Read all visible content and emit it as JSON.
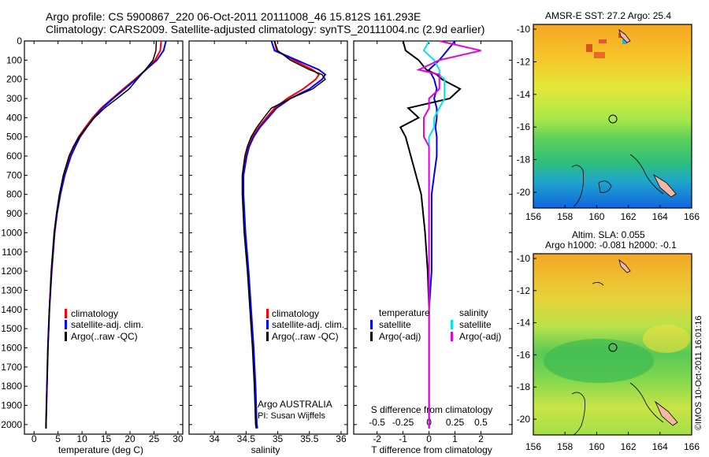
{
  "titles": {
    "line1": "Argo profile: CS 5900867_220 06-Oct-2011 20111008_46 15.812S 161.293E",
    "line2": "Climatology: CARS2009. Satellite-adjusted climatology: synTS_20111004.nc (2.9d earlier)"
  },
  "legend_temperature": [
    "climatology",
    "satellite-adj. clim.",
    "Argo(..raw -QC)"
  ],
  "legend_salinity": [
    "climatology",
    "satellite-adj. clim.",
    "Argo(..raw -QC)"
  ],
  "argo_credit": [
    "Argo AUSTRALIA",
    "PI: Susan Wijffels"
  ],
  "legend_diff": {
    "temp_header": "temperature",
    "sal_header": "salinity",
    "temp_items": [
      "satellite",
      "Argo(-adj)"
    ],
    "sal_items": [
      "satellite",
      "Argo(-adj)"
    ]
  },
  "map_sst": {
    "title": "AMSR-E SST: 27.2 Argo: 25.4"
  },
  "map_sla": {
    "title1": "Altim. SLA: 0.055",
    "title2": "Argo h1000: -0.081 h2000: -0.1"
  },
  "map_axes": {
    "x_ticks": [
      "156",
      "158",
      "160",
      "162",
      "164",
      "166"
    ],
    "y_ticks": [
      "-10",
      "-12",
      "-14",
      "-16",
      "-18",
      "-20"
    ]
  },
  "imos_credit": "©IMOS 10-Oct-2011 16:01:16",
  "colors": {
    "climatology": "#ff0000",
    "satellite": "#0000ff",
    "argo": "#000000",
    "sat_salinity": "#00e5e5",
    "argo_salinity": "#e600e6"
  },
  "chart_data": [
    {
      "type": "line",
      "panel": "temperature",
      "xlabel": "temperature (deg C)",
      "ylabel": "",
      "xlim": [
        -2,
        31
      ],
      "ylim": [
        2050,
        0
      ],
      "x_ticks": [
        0,
        5,
        10,
        15,
        20,
        25,
        30
      ],
      "y_ticks": [
        0,
        100,
        200,
        300,
        400,
        500,
        600,
        700,
        800,
        900,
        1000,
        1100,
        1200,
        1300,
        1400,
        1500,
        1600,
        1700,
        1800,
        1900,
        2000
      ],
      "depth": [
        0,
        50,
        100,
        150,
        200,
        250,
        300,
        350,
        400,
        450,
        500,
        550,
        600,
        700,
        800,
        900,
        1000,
        1200,
        1400,
        1600,
        1800,
        2000,
        2020
      ],
      "series": [
        {
          "name": "climatology",
          "values": [
            26.5,
            26.3,
            25.2,
            23.3,
            21.0,
            18.6,
            16.3,
            14.0,
            12.2,
            10.7,
            9.3,
            8.3,
            7.4,
            6.2,
            5.3,
            4.7,
            4.2,
            3.6,
            3.2,
            2.9,
            2.7,
            2.5,
            2.5
          ]
        },
        {
          "name": "satellite-adj. clim.",
          "values": [
            27.5,
            27.0,
            25.6,
            23.3,
            21.2,
            18.9,
            16.5,
            14.2,
            12.5,
            11.0,
            9.6,
            8.6,
            7.7,
            6.4,
            5.5,
            4.8,
            4.3,
            3.7,
            3.2,
            2.9,
            2.7,
            2.5,
            2.5
          ]
        },
        {
          "name": "Argo(..raw -QC)",
          "values": [
            25.5,
            25.4,
            24.8,
            23.2,
            21.5,
            19.8,
            17.3,
            14.7,
            12.6,
            10.9,
            9.4,
            8.2,
            7.3,
            6.1,
            5.3,
            4.7,
            4.2,
            3.6,
            3.2,
            2.9,
            2.7,
            2.5,
            2.5
          ]
        }
      ]
    },
    {
      "type": "line",
      "panel": "salinity",
      "xlabel": "salinity",
      "ylabel": "",
      "xlim": [
        33.6,
        36.1
      ],
      "ylim": [
        2050,
        0
      ],
      "x_ticks": [
        34,
        34.5,
        35,
        35.5,
        36
      ],
      "depth": [
        0,
        50,
        100,
        150,
        175,
        200,
        250,
        300,
        350,
        400,
        450,
        500,
        550,
        600,
        700,
        800,
        1000,
        1200,
        1400,
        1600,
        1800,
        2000,
        2020
      ],
      "series": [
        {
          "name": "climatology",
          "values": [
            34.95,
            34.98,
            35.25,
            35.55,
            35.65,
            35.6,
            35.4,
            35.15,
            34.95,
            34.82,
            34.7,
            34.6,
            34.54,
            34.5,
            34.45,
            34.45,
            34.48,
            34.53,
            34.57,
            34.61,
            34.64,
            34.66,
            34.67
          ]
        },
        {
          "name": "satellite-adj. clim.",
          "values": [
            34.9,
            34.95,
            35.3,
            35.65,
            35.75,
            35.7,
            35.5,
            35.2,
            34.98,
            34.85,
            34.72,
            34.62,
            34.55,
            34.51,
            34.46,
            34.46,
            34.49,
            34.54,
            34.58,
            34.62,
            34.65,
            34.67,
            34.68
          ]
        },
        {
          "name": "Argo(..raw -QC)",
          "values": [
            34.95,
            35.0,
            35.2,
            35.5,
            35.7,
            35.75,
            35.55,
            35.2,
            34.9,
            34.78,
            34.67,
            34.58,
            34.52,
            34.48,
            34.44,
            34.44,
            34.47,
            34.52,
            34.56,
            34.6,
            34.63,
            34.65,
            34.66
          ]
        }
      ]
    },
    {
      "type": "line",
      "panel": "difference",
      "xlabel": "T difference from climatology",
      "x2label": "S difference from climatology",
      "xlim": [
        -2.9,
        3.2
      ],
      "ylim": [
        2050,
        0
      ],
      "x_ticks": [
        -2,
        -1,
        0,
        1,
        2
      ],
      "s_ticks": [
        -0.5,
        -0.25,
        0,
        0.25,
        0.5
      ],
      "depth": [
        0,
        50,
        100,
        150,
        175,
        200,
        250,
        300,
        350,
        400,
        450,
        500,
        550,
        600,
        700,
        800,
        1000,
        1200,
        1400,
        1600,
        1800,
        2000,
        2020
      ],
      "series": [
        {
          "name": "temperature satellite",
          "values": [
            1.0,
            0.7,
            0.4,
            0.0,
            0.1,
            0.2,
            0.3,
            0.2,
            0.3,
            0.3,
            0.25,
            0.3,
            0.3,
            0.3,
            0.2,
            0.1,
            0.1,
            0.1,
            0.0,
            0.0,
            0.0,
            0.0,
            0.0
          ]
        },
        {
          "name": "temperature Argo(-adj)",
          "values": [
            -1.0,
            -0.9,
            -0.4,
            -0.1,
            0.3,
            0.5,
            1.2,
            0.8,
            -0.8,
            -0.4,
            -1.1,
            -0.9,
            -0.8,
            -0.7,
            -0.5,
            -0.3,
            -0.15,
            -0.05,
            0.0,
            0.0,
            0.0,
            0.0,
            0.0
          ]
        },
        {
          "name": "salinity satellite",
          "values": [
            0.0,
            -0.05,
            0.05,
            0.1,
            0.1,
            0.15,
            0.15,
            0.15,
            0.1,
            0.05,
            0.05,
            0.0,
            0.0,
            0.0,
            0.0,
            0.0,
            0.0,
            0.0,
            0.0,
            0.0,
            0.0,
            0.0,
            0.0
          ]
        },
        {
          "name": "salinity Argo(-adj)",
          "values": [
            0.1,
            0.5,
            0.1,
            -0.1,
            0.1,
            0.1,
            0.1,
            0.0,
            0.0,
            -0.05,
            -0.05,
            -0.05,
            0.0,
            0.0,
            0.0,
            0.0,
            0.0,
            0.0,
            0.0,
            0.0,
            0.0,
            0.0,
            0.0
          ]
        }
      ]
    }
  ]
}
